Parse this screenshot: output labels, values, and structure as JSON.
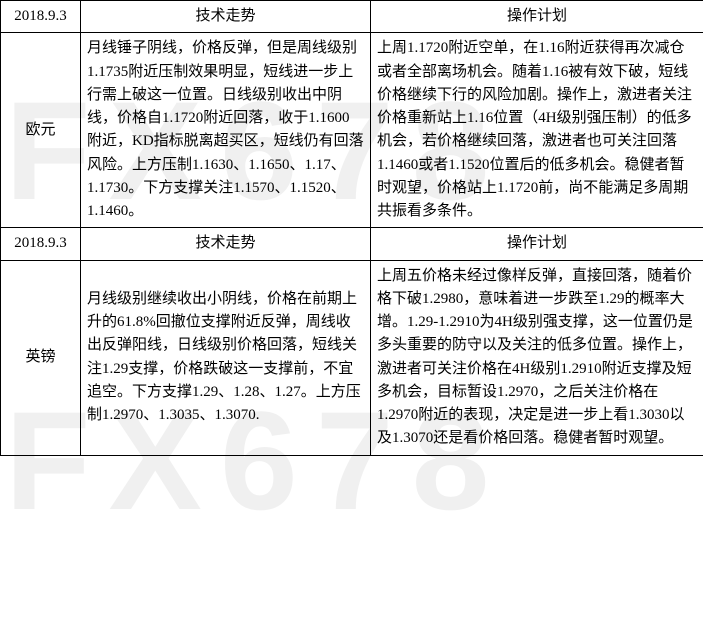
{
  "watermark": "FX678",
  "sections": [
    {
      "date": "2018.9.3",
      "header_tech": "技术走势",
      "header_plan": "操作计划",
      "label": "欧元",
      "tech": "月线锤子阴线，价格反弹，但是周线级别1.1735附近压制效果明显，短线进一步上行需上破这一位置。日线级别收出中阴线，价格自1.1720附近回落，收于1.1600附近，KD指标脱离超买区，短线仍有回落风险。上方压制1.1630、1.1650、1.17、1.1730。下方支撑关注1.1570、1.1520、1.1460。",
      "plan": "上周1.1720附近空单，在1.16附近获得再次减仓或者全部离场机会。随着1.16被有效下破，短线价格继续下行的风险加剧。操作上，激进者关注价格重新站上1.16位置（4H级别强压制）的低多机会，若价格继续回落，激进者也可关注回落1.1460或者1.1520位置后的低多机会。稳健者暂时观望，价格站上1.1720前，尚不能满足多周期共振看多条件。"
    },
    {
      "date": "2018.9.3",
      "header_tech": "技术走势",
      "header_plan": "操作计划",
      "label": "英镑",
      "tech": "月线级别继续收出小阴线，价格在前期上升的61.8%回撤位支撑附近反弹，周线收出反弹阳线，日线级别价格回落，短线关注1.29支撑，价格跌破这一支撑前，不宜追空。下方支撑1.29、1.28、1.27。上方压制1.2970、1.3035、1.3070.",
      "plan": "上周五价格未经过像样反弹，直接回落，随着价格下破1.2980，意味着进一步跌至1.29的概率大增。1.29-1.2910为4H级别强支撑，这一位置仍是多头重要的防守以及关注的低多位置。操作上，激进者可关注价格在4H级别1.2910附近支撑及短多机会，目标暂设1.2970，之后关注价格在1.2970附近的表现，决定是进一步上看1.3030以及1.3070还是看价格回落。稳健者暂时观望。"
    }
  ]
}
